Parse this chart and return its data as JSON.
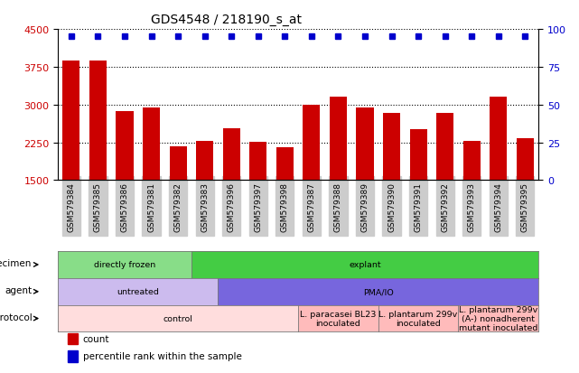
{
  "title": "GDS4548 / 218190_s_at",
  "samples": [
    "GSM579384",
    "GSM579385",
    "GSM579386",
    "GSM579381",
    "GSM579382",
    "GSM579383",
    "GSM579396",
    "GSM579397",
    "GSM579398",
    "GSM579387",
    "GSM579388",
    "GSM579389",
    "GSM579390",
    "GSM579391",
    "GSM579392",
    "GSM579393",
    "GSM579394",
    "GSM579395"
  ],
  "counts": [
    3870,
    3870,
    2870,
    2950,
    2170,
    2270,
    2530,
    2260,
    2160,
    3000,
    3150,
    2950,
    2830,
    2520,
    2830,
    2270,
    3160,
    2340
  ],
  "bar_color": "#cc0000",
  "dot_color": "#0000cc",
  "ylim_left": [
    1500,
    4500
  ],
  "ylim_right": [
    0,
    100
  ],
  "yticks_left": [
    1500,
    2250,
    3000,
    3750,
    4500
  ],
  "yticks_right": [
    0,
    25,
    50,
    75,
    100
  ],
  "grid_values": [
    2250,
    3000,
    3750,
    4500
  ],
  "specimen_row": {
    "label": "specimen",
    "segments": [
      {
        "text": "directly frozen",
        "start": 0,
        "end": 5,
        "color": "#88dd88"
      },
      {
        "text": "explant",
        "start": 5,
        "end": 18,
        "color": "#44cc44"
      }
    ]
  },
  "agent_row": {
    "label": "agent",
    "segments": [
      {
        "text": "untreated",
        "start": 0,
        "end": 6,
        "color": "#ccbbee"
      },
      {
        "text": "PMA/IO",
        "start": 6,
        "end": 18,
        "color": "#7766dd"
      }
    ]
  },
  "protocol_row": {
    "label": "protocol",
    "segments": [
      {
        "text": "control",
        "start": 0,
        "end": 9,
        "color": "#ffdddd"
      },
      {
        "text": "L. paracasei BL23\ninoculated",
        "start": 9,
        "end": 12,
        "color": "#ffbbbb"
      },
      {
        "text": "L. plantarum 299v\ninoculated",
        "start": 12,
        "end": 15,
        "color": "#ffbbbb"
      },
      {
        "text": "L. plantarum 299v\n(A-) nonadherent\nmutant inoculated",
        "start": 15,
        "end": 18,
        "color": "#ffbbbb"
      }
    ]
  },
  "legend_items": [
    {
      "color": "#cc0000",
      "label": "count"
    },
    {
      "color": "#0000cc",
      "label": "percentile rank within the sample"
    }
  ],
  "bg_color": "#ffffff",
  "tick_bg_color": "#cccccc"
}
